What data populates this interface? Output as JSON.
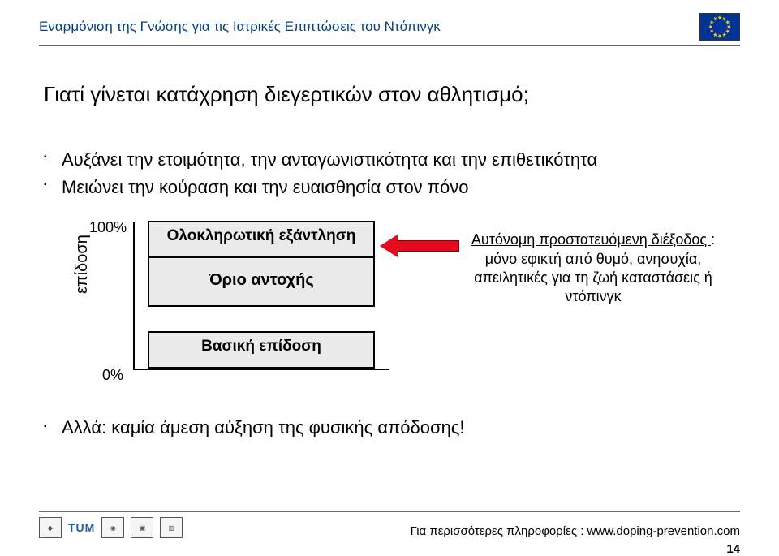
{
  "header": {
    "title": "Εναρμόνιση της Γνώσης για τις Ιατρικές Επιπτώσεις του Ντόπινγκ",
    "flag_bg": "#003399",
    "flag_star_color": "#ffcc00"
  },
  "main": {
    "heading": "Γιατί γίνεται κατάχρηση διεγερτικών στον αθλητισμό;",
    "bullets": [
      "Αυξάνει την ετοιμότητα, την ανταγωνιστικότητα και την επιθετικότητα",
      "Μειώνει την κούραση και την ευαισθησία στον πόνο"
    ],
    "bottom_bullet": "Αλλά: καμία άμεση αύξηση της φυσικής απόδοσης!"
  },
  "diagram": {
    "pct_100": "100%",
    "pct_0": "0%",
    "y_label": "επίδοση",
    "bar_top": "Ολοκληρωτική εξάντληση",
    "bar_mid": "Όριο αντοχής",
    "bar_bot": "Βασική επίδοση",
    "bar_bg": "#eaeaea",
    "arrow_color": "#e40b1e",
    "annotation_underline": "Αυτόνομη προστατευόμενη διέξοδος ",
    "annotation_rest": ": μόνο εφικτή από θυμό, ανησυχία, απειλητικές για τη ζωή καταστάσεις ή ντόπινγκ"
  },
  "footer": {
    "link_text": "Για περισσότερες πληροφορίες : www.doping-prevention.com",
    "page_number": "14",
    "tum_label": "TUM"
  },
  "colors": {
    "header_text": "#003f8a",
    "rule": "#666666",
    "tum": "#1f5fa8"
  }
}
